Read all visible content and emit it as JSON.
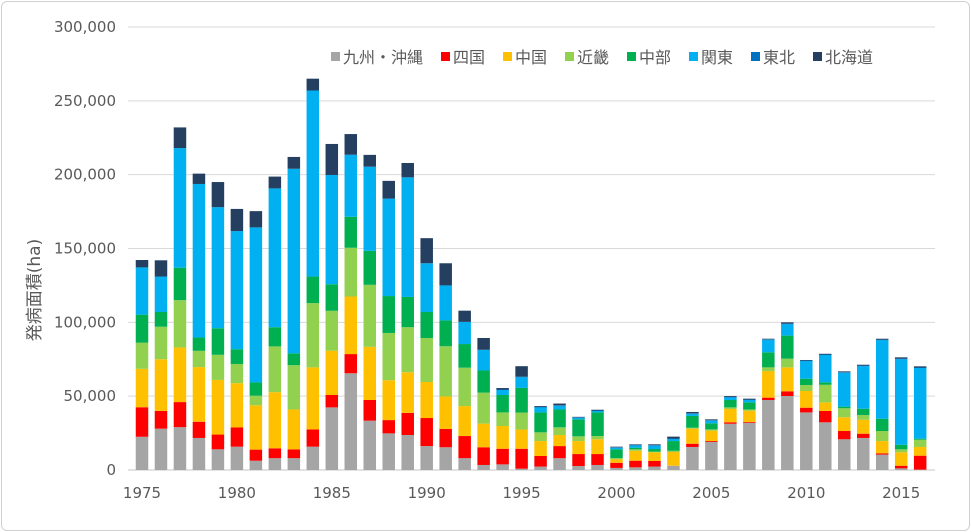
{
  "chart_data": {
    "type": "bar",
    "stacked": true,
    "title": "",
    "xlabel": "",
    "ylabel": "発病面積(ha)",
    "ylim": [
      0,
      300000
    ],
    "yticks": [
      0,
      50000,
      100000,
      150000,
      200000,
      250000,
      300000
    ],
    "ytick_labels": [
      "0",
      "50,000",
      "100,000",
      "150,000",
      "200,000",
      "250,000",
      "300,000"
    ],
    "grid": true,
    "legend_position": "top-right",
    "categories": [
      1975,
      1976,
      1977,
      1978,
      1979,
      1980,
      1981,
      1982,
      1983,
      1984,
      1985,
      1986,
      1987,
      1988,
      1989,
      1990,
      1991,
      1992,
      1993,
      1994,
      1995,
      1996,
      1997,
      1998,
      1999,
      2000,
      2001,
      2002,
      2003,
      2004,
      2005,
      2006,
      2007,
      2008,
      2009,
      2010,
      2011,
      2012,
      2013,
      2014,
      2015,
      2016
    ],
    "xtick_labels": [
      "1975",
      "1980",
      "1985",
      "1990",
      "1995",
      "2000",
      "2005",
      "2010",
      "2015"
    ],
    "series": [
      {
        "name": "九州・沖縄",
        "color": "#A5A5A5",
        "values": [
          22500,
          28000,
          29000,
          21700,
          14000,
          15800,
          6300,
          8000,
          8000,
          15800,
          42400,
          65500,
          33400,
          24800,
          23700,
          16200,
          15400,
          8000,
          3400,
          3800,
          900,
          2300,
          8000,
          2700,
          3400,
          1400,
          1800,
          2300,
          2900,
          15600,
          19000,
          31300,
          32000,
          47400,
          50100,
          39000,
          32300,
          20800,
          21700,
          10400,
          1100,
          300
        ]
      },
      {
        "name": "四国",
        "color": "#FF0000",
        "values": [
          20000,
          12000,
          17000,
          11000,
          10000,
          13000,
          7500,
          6700,
          6000,
          11700,
          8400,
          13000,
          14000,
          9000,
          15000,
          19000,
          12400,
          15000,
          12000,
          10600,
          13500,
          7200,
          8200,
          8100,
          7400,
          3500,
          4500,
          3800,
          0,
          2200,
          600,
          1000,
          500,
          1600,
          3200,
          3200,
          7700,
          5600,
          2900,
          900,
          1800,
          9400
        ]
      },
      {
        "name": "中国",
        "color": "#FFC000",
        "values": [
          26000,
          35000,
          37000,
          37000,
          37000,
          30000,
          30000,
          38000,
          27000,
          42000,
          30000,
          39000,
          36000,
          27000,
          27500,
          24400,
          22000,
          20300,
          16000,
          15400,
          13000,
          10100,
          7500,
          8800,
          10000,
          2300,
          6700,
          5900,
          9300,
          10200,
          7000,
          9000,
          7600,
          18000,
          16200,
          11300,
          5800,
          9300,
          9400,
          8300,
          9100,
          5900
        ]
      },
      {
        "name": "近畿",
        "color": "#92D050",
        "values": [
          17700,
          22000,
          32000,
          11000,
          17000,
          13000,
          6500,
          31000,
          30000,
          43500,
          27000,
          33000,
          42000,
          32000,
          30500,
          29800,
          34000,
          26000,
          21000,
          9200,
          11500,
          5900,
          5200,
          3200,
          2200,
          900,
          1000,
          400,
          800,
          600,
          900,
          1100,
          900,
          2500,
          5900,
          4000,
          11900,
          6100,
          3200,
          6800,
          2000,
          4900
        ]
      },
      {
        "name": "中部",
        "color": "#00B050",
        "values": [
          19000,
          10000,
          22000,
          9000,
          18000,
          10000,
          9000,
          13000,
          8000,
          18000,
          18000,
          21000,
          23000,
          25000,
          20500,
          17600,
          17500,
          16000,
          15000,
          11800,
          16700,
          13500,
          12100,
          11500,
          16000,
          5900,
          1100,
          1800,
          6600,
          8000,
          4100,
          5000,
          4800,
          10200,
          15600,
          4300,
          1700,
          1100,
          4300,
          8300,
          3100,
          700
        ]
      },
      {
        "name": "関東",
        "color": "#00B0F0",
        "values": [
          32000,
          24000,
          81000,
          104000,
          82000,
          80000,
          105000,
          94000,
          125000,
          126000,
          74000,
          42000,
          57000,
          66000,
          81000,
          33000,
          23700,
          15000,
          14000,
          3400,
          7300,
          3400,
          2500,
          1100,
          1000,
          1100,
          1600,
          2300,
          1400,
          1500,
          1800,
          1800,
          1600,
          8500,
          7800,
          12000,
          18500,
          23000,
          28900,
          53300,
          58000,
          47900
        ]
      },
      {
        "name": "東北",
        "color": "#0070C0",
        "values": [
          0,
          0,
          0,
          0,
          0,
          0,
          0,
          0,
          0,
          0,
          0,
          0,
          0,
          0,
          0,
          0,
          0,
          0,
          0,
          300,
          300,
          300,
          300,
          300,
          300,
          300,
          300,
          300,
          300,
          300,
          300,
          300,
          300,
          300,
          300,
          300,
          300,
          300,
          300,
          300,
          300,
          300
        ]
      },
      {
        "name": "北海道",
        "color": "#243F60",
        "values": [
          5000,
          11000,
          14000,
          7000,
          17000,
          15000,
          11000,
          8000,
          8000,
          8000,
          21000,
          14000,
          8000,
          12000,
          9700,
          17000,
          15000,
          7600,
          8000,
          1000,
          7100,
          600,
          1200,
          300,
          500,
          400,
          400,
          600,
          1300,
          900,
          600,
          600,
          600,
          400,
          900,
          400,
          500,
          600,
          600,
          600,
          900,
          800
        ]
      }
    ]
  }
}
